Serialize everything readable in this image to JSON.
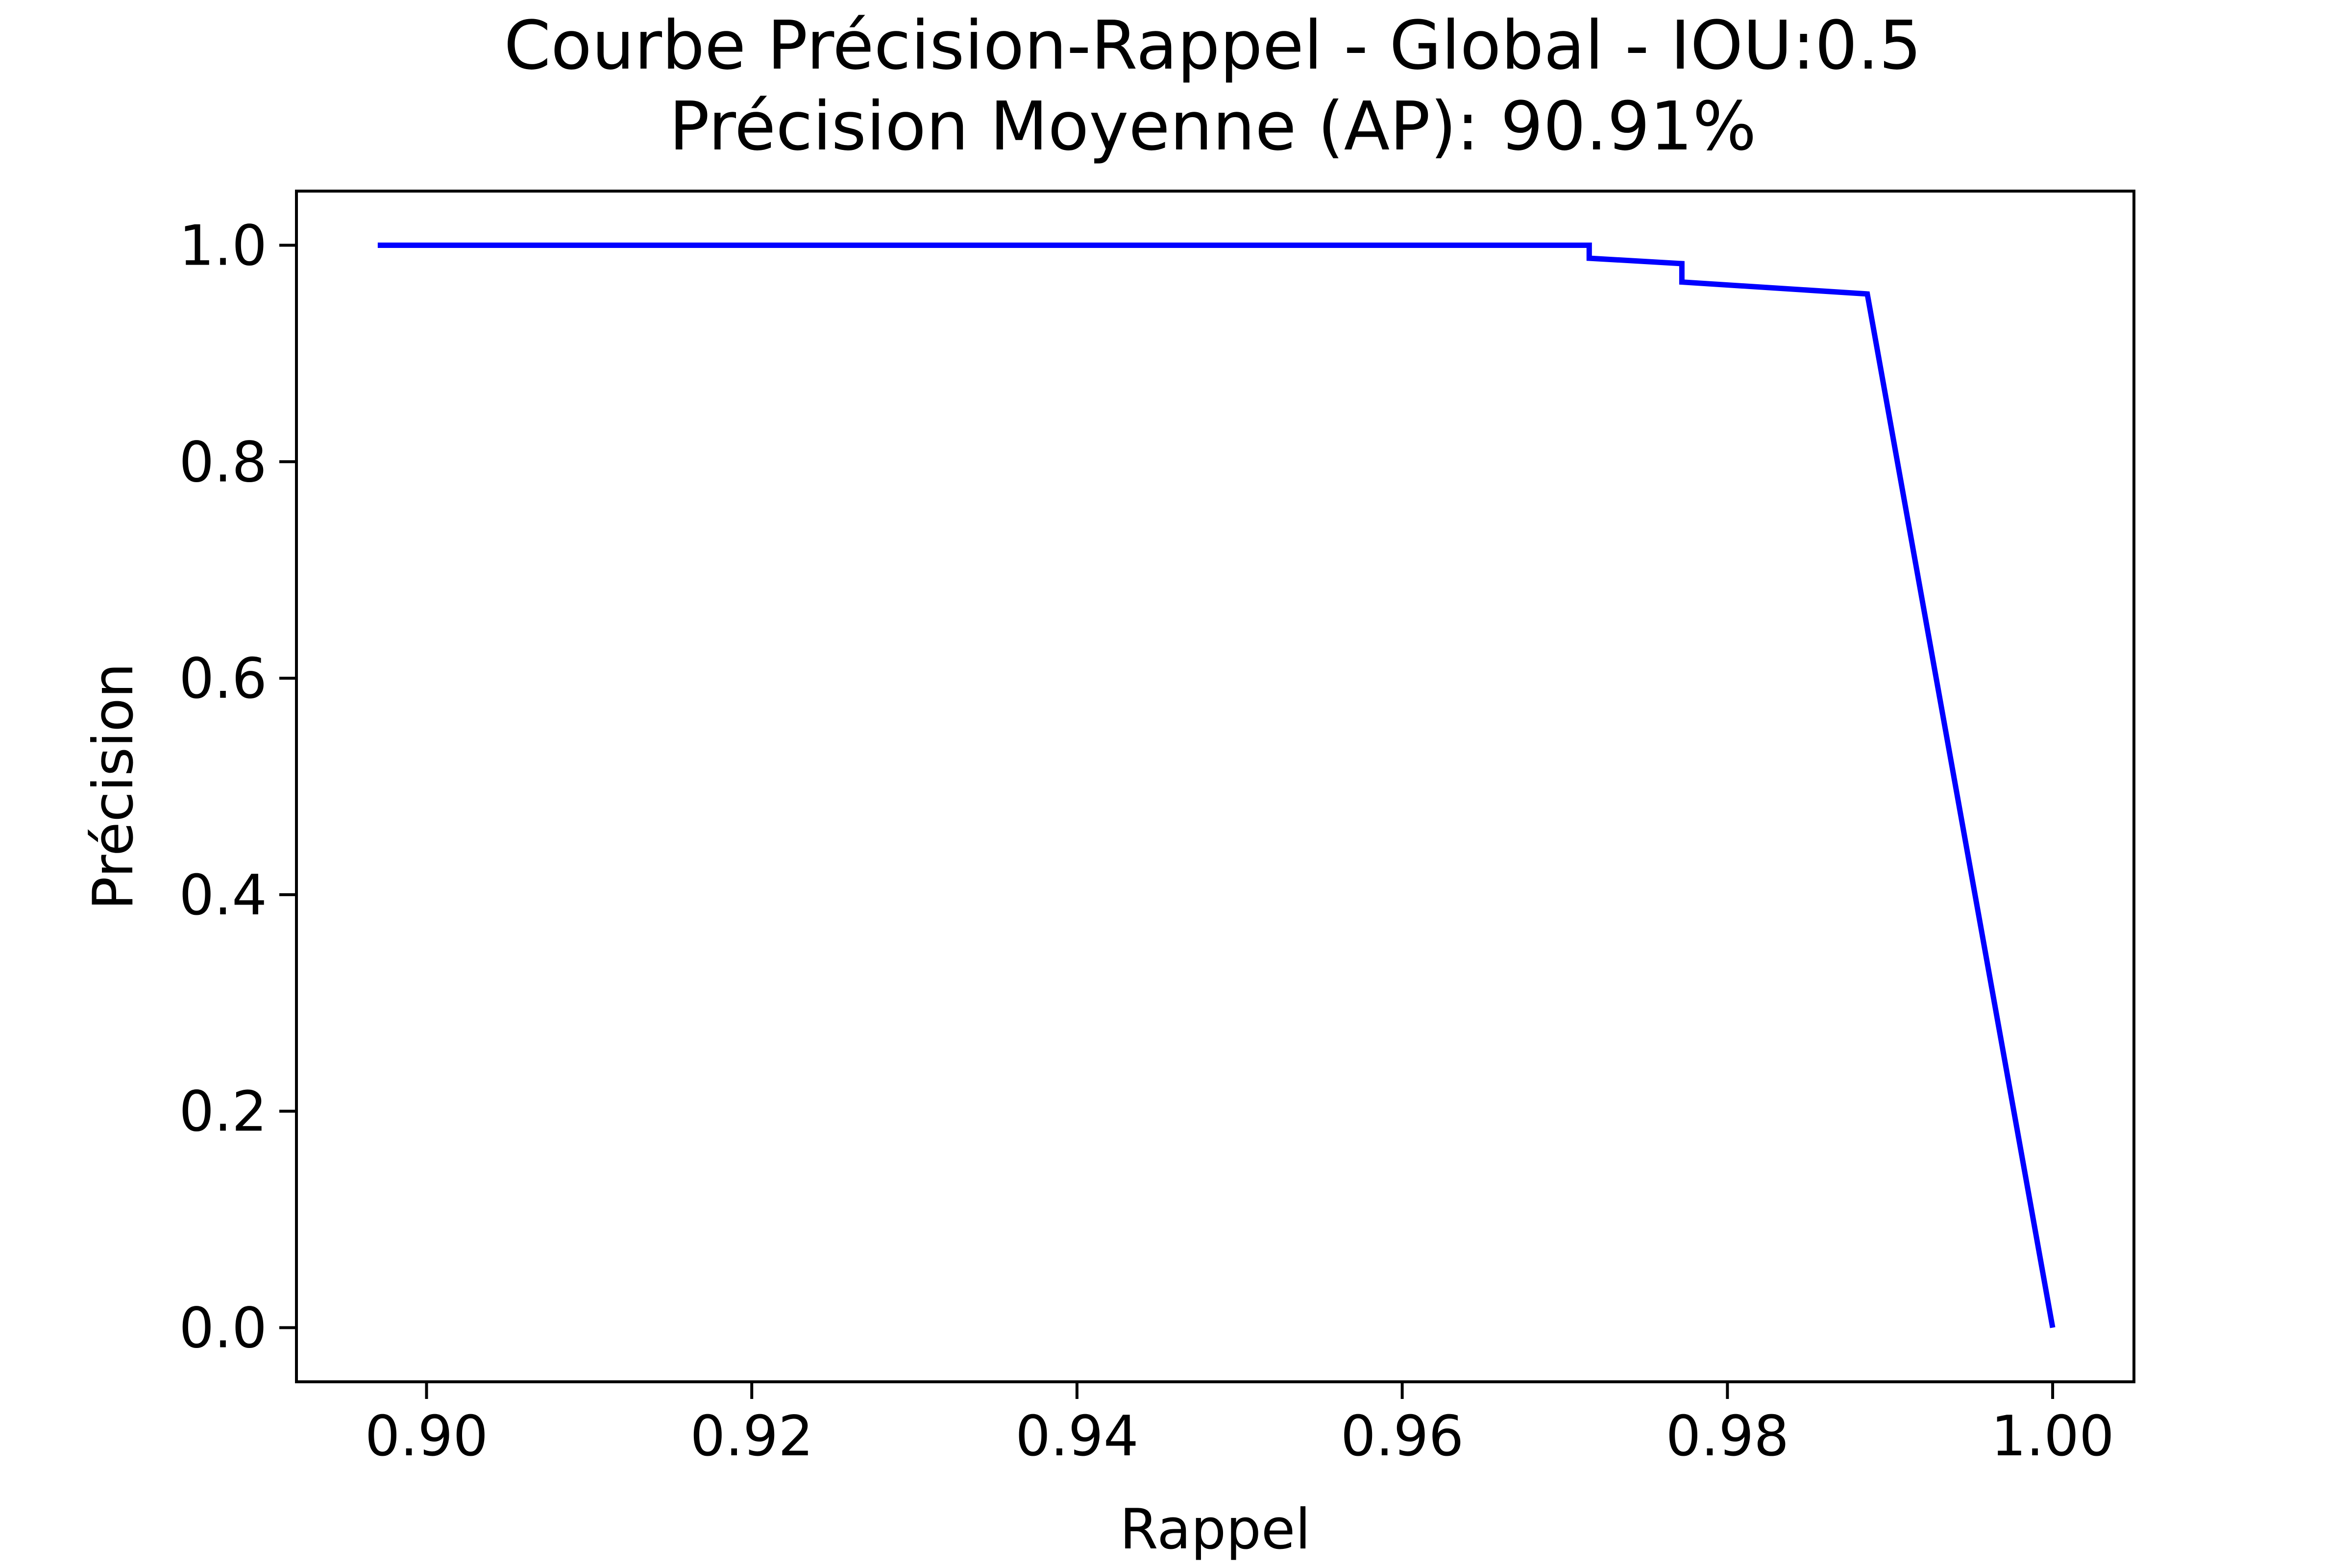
{
  "chart_data": {
    "type": "line",
    "title": "Courbe Précision-Rappel - Global - IOU:0.5",
    "subtitle": "Précision Moyenne (AP): 90.91%",
    "xlabel": "Rappel",
    "ylabel": "Précision",
    "xlim": [
      0.892,
      1.005
    ],
    "ylim": [
      -0.05,
      1.05
    ],
    "x_ticks": [
      "0.90",
      "0.92",
      "0.94",
      "0.96",
      "0.98",
      "1.00"
    ],
    "y_ticks": [
      "0.0",
      "0.2",
      "0.4",
      "0.6",
      "0.8",
      "1.0"
    ],
    "grid": false,
    "series": [
      {
        "color": "#0000ff",
        "x": [
          0.897,
          0.9715,
          0.9715,
          0.9772,
          0.9772,
          0.9886,
          1.0
        ],
        "y": [
          1.0,
          1.0,
          0.988,
          0.983,
          0.966,
          0.955,
          0.0
        ]
      }
    ]
  }
}
